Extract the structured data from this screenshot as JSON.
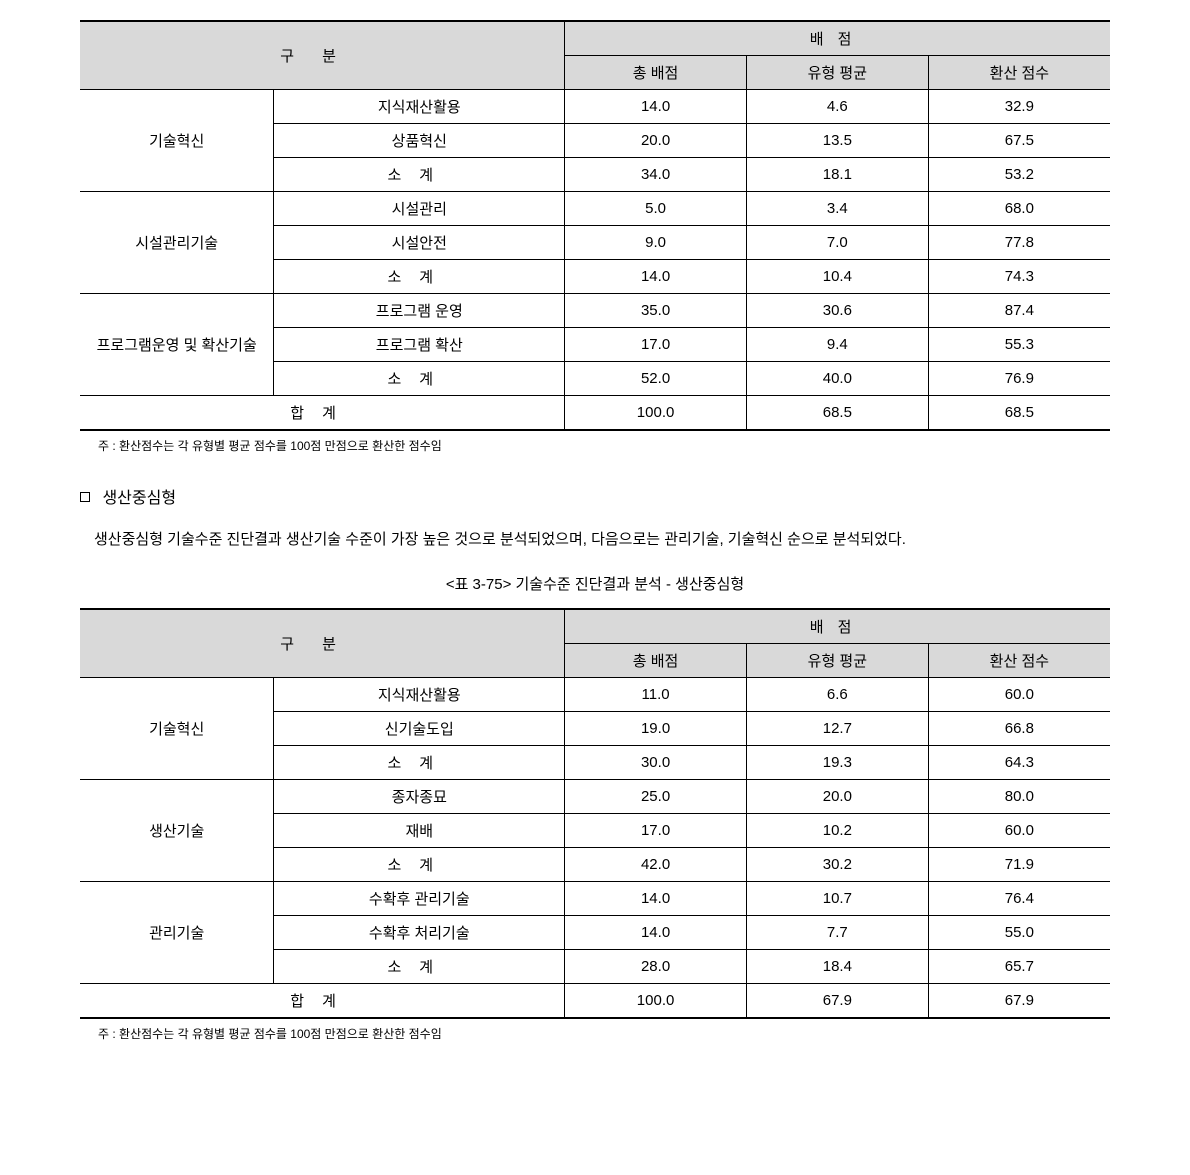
{
  "common": {
    "gubun": "구분",
    "baejeom": "배점",
    "total_score": "총 배점",
    "type_avg": "유형 평균",
    "conv_score": "환산 점수",
    "subtotal": "소계",
    "total": "합계"
  },
  "table1": {
    "footnote": "주 : 환산점수는 각 유형별 평균 점수를 100점 만점으로 환산한 점수임",
    "groups": [
      {
        "label": "기술혁신",
        "rows": [
          {
            "sub": "지식재산활용",
            "v1": "14.0",
            "v2": "4.6",
            "v3": "32.9"
          },
          {
            "sub": "상품혁신",
            "v1": "20.0",
            "v2": "13.5",
            "v3": "67.5"
          },
          {
            "sub": "__subtotal__",
            "v1": "34.0",
            "v2": "18.1",
            "v3": "53.2"
          }
        ]
      },
      {
        "label": "시설관리기술",
        "rows": [
          {
            "sub": "시설관리",
            "v1": "5.0",
            "v2": "3.4",
            "v3": "68.0"
          },
          {
            "sub": "시설안전",
            "v1": "9.0",
            "v2": "7.0",
            "v3": "77.8"
          },
          {
            "sub": "__subtotal__",
            "v1": "14.0",
            "v2": "10.4",
            "v3": "74.3"
          }
        ]
      },
      {
        "label": "프로그램운영 및 확산기술",
        "rows": [
          {
            "sub": "프로그램 운영",
            "v1": "35.0",
            "v2": "30.6",
            "v3": "87.4"
          },
          {
            "sub": "프로그램 확산",
            "v1": "17.0",
            "v2": "9.4",
            "v3": "55.3"
          },
          {
            "sub": "__subtotal__",
            "v1": "52.0",
            "v2": "40.0",
            "v3": "76.9"
          }
        ]
      }
    ],
    "total": {
      "v1": "100.0",
      "v2": "68.5",
      "v3": "68.5"
    }
  },
  "section": {
    "heading": "생산중심형",
    "body": "생산중심형 기술수준 진단결과 생산기술 수준이 가장 높은 것으로 분석되었으며, 다음으로는 관리기술, 기술혁신 순으로 분석되었다.",
    "caption": "<표 3-75> 기술수준 진단결과 분석 - 생산중심형"
  },
  "table2": {
    "footnote": "주 : 환산점수는 각 유형별 평균 점수를 100점 만점으로 환산한 점수임",
    "groups": [
      {
        "label": "기술혁신",
        "rows": [
          {
            "sub": "지식재산활용",
            "v1": "11.0",
            "v2": "6.6",
            "v3": "60.0"
          },
          {
            "sub": "신기술도입",
            "v1": "19.0",
            "v2": "12.7",
            "v3": "66.8"
          },
          {
            "sub": "__subtotal__",
            "v1": "30.0",
            "v2": "19.3",
            "v3": "64.3"
          }
        ]
      },
      {
        "label": "생산기술",
        "rows": [
          {
            "sub": "종자종묘",
            "v1": "25.0",
            "v2": "20.0",
            "v3": "80.0"
          },
          {
            "sub": "재배",
            "v1": "17.0",
            "v2": "10.2",
            "v3": "60.0"
          },
          {
            "sub": "__subtotal__",
            "v1": "42.0",
            "v2": "30.2",
            "v3": "71.9"
          }
        ]
      },
      {
        "label": "관리기술",
        "rows": [
          {
            "sub": "수확후 관리기술",
            "v1": "14.0",
            "v2": "10.7",
            "v3": "76.4"
          },
          {
            "sub": "수확후 처리기술",
            "v1": "14.0",
            "v2": "7.7",
            "v3": "55.0"
          },
          {
            "sub": "__subtotal__",
            "v1": "28.0",
            "v2": "18.4",
            "v3": "65.7"
          }
        ]
      }
    ],
    "total": {
      "v1": "100.0",
      "v2": "67.9",
      "v3": "67.9"
    }
  }
}
